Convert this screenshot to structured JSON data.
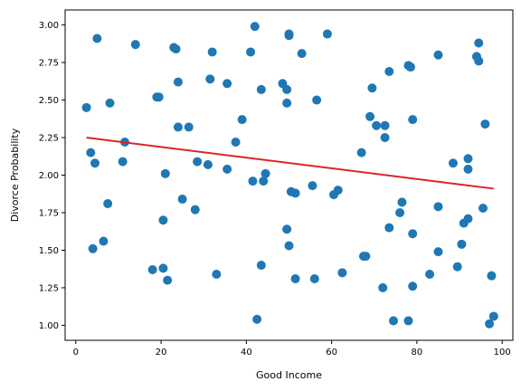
{
  "chart_data": {
    "type": "scatter",
    "xlabel": "Good Income",
    "ylabel": "Divorce Probability",
    "xlim": [
      -2.5,
      102.5
    ],
    "ylim": [
      0.9,
      3.1
    ],
    "xticks": [
      0,
      20,
      40,
      60,
      80,
      100
    ],
    "xtick_labels": [
      "0",
      "20",
      "40",
      "60",
      "80",
      "100"
    ],
    "yticks": [
      1.0,
      1.25,
      1.5,
      1.75,
      2.0,
      2.25,
      2.5,
      2.75,
      3.0
    ],
    "ytick_labels": [
      "1.00",
      "1.25",
      "1.50",
      "1.75",
      "2.00",
      "2.25",
      "2.50",
      "2.75",
      "3.00"
    ],
    "grid": false,
    "point_color": "#1f77b4",
    "line_color": "#d62728",
    "points": [
      {
        "x": 2.5,
        "y": 2.45
      },
      {
        "x": 3.5,
        "y": 2.15
      },
      {
        "x": 4.0,
        "y": 1.51
      },
      {
        "x": 4.5,
        "y": 2.08
      },
      {
        "x": 5.0,
        "y": 2.91
      },
      {
        "x": 6.5,
        "y": 1.56
      },
      {
        "x": 7.5,
        "y": 1.81
      },
      {
        "x": 8.0,
        "y": 2.48
      },
      {
        "x": 11.0,
        "y": 2.09
      },
      {
        "x": 11.5,
        "y": 2.22
      },
      {
        "x": 14.0,
        "y": 2.87
      },
      {
        "x": 18.0,
        "y": 1.37
      },
      {
        "x": 19.0,
        "y": 2.52
      },
      {
        "x": 19.5,
        "y": 2.52
      },
      {
        "x": 20.5,
        "y": 1.38
      },
      {
        "x": 20.5,
        "y": 1.7
      },
      {
        "x": 21.0,
        "y": 2.01
      },
      {
        "x": 21.5,
        "y": 1.3
      },
      {
        "x": 23.0,
        "y": 2.85
      },
      {
        "x": 23.5,
        "y": 2.84
      },
      {
        "x": 24.0,
        "y": 2.32
      },
      {
        "x": 24.0,
        "y": 2.62
      },
      {
        "x": 25.0,
        "y": 1.84
      },
      {
        "x": 26.5,
        "y": 2.32
      },
      {
        "x": 28.0,
        "y": 1.77
      },
      {
        "x": 28.5,
        "y": 2.09
      },
      {
        "x": 31.0,
        "y": 2.07
      },
      {
        "x": 31.5,
        "y": 2.64
      },
      {
        "x": 32.0,
        "y": 2.82
      },
      {
        "x": 33.0,
        "y": 1.34
      },
      {
        "x": 35.5,
        "y": 2.61
      },
      {
        "x": 35.5,
        "y": 2.04
      },
      {
        "x": 37.5,
        "y": 2.22
      },
      {
        "x": 39.0,
        "y": 2.37
      },
      {
        "x": 41.0,
        "y": 2.82
      },
      {
        "x": 41.5,
        "y": 1.96
      },
      {
        "x": 42.0,
        "y": 2.99
      },
      {
        "x": 42.5,
        "y": 1.04
      },
      {
        "x": 43.5,
        "y": 2.57
      },
      {
        "x": 43.5,
        "y": 1.4
      },
      {
        "x": 44.0,
        "y": 1.96
      },
      {
        "x": 44.5,
        "y": 2.01
      },
      {
        "x": 48.5,
        "y": 2.61
      },
      {
        "x": 49.5,
        "y": 1.64
      },
      {
        "x": 49.5,
        "y": 2.48
      },
      {
        "x": 49.5,
        "y": 2.57
      },
      {
        "x": 50.0,
        "y": 2.94
      },
      {
        "x": 50.0,
        "y": 2.93
      },
      {
        "x": 50.0,
        "y": 1.53
      },
      {
        "x": 50.5,
        "y": 1.89
      },
      {
        "x": 51.5,
        "y": 1.88
      },
      {
        "x": 51.5,
        "y": 1.31
      },
      {
        "x": 53.0,
        "y": 2.81
      },
      {
        "x": 55.5,
        "y": 1.93
      },
      {
        "x": 56.0,
        "y": 1.31
      },
      {
        "x": 56.5,
        "y": 2.5
      },
      {
        "x": 59.0,
        "y": 2.94
      },
      {
        "x": 60.5,
        "y": 1.87
      },
      {
        "x": 61.5,
        "y": 1.9
      },
      {
        "x": 62.5,
        "y": 1.35
      },
      {
        "x": 67.0,
        "y": 2.15
      },
      {
        "x": 67.5,
        "y": 1.46
      },
      {
        "x": 68.0,
        "y": 1.46
      },
      {
        "x": 69.0,
        "y": 2.39
      },
      {
        "x": 69.5,
        "y": 2.58
      },
      {
        "x": 70.5,
        "y": 2.33
      },
      {
        "x": 72.0,
        "y": 1.25
      },
      {
        "x": 72.5,
        "y": 2.25
      },
      {
        "x": 72.5,
        "y": 2.33
      },
      {
        "x": 73.5,
        "y": 2.69
      },
      {
        "x": 73.5,
        "y": 1.65
      },
      {
        "x": 74.5,
        "y": 1.03
      },
      {
        "x": 76.0,
        "y": 1.75
      },
      {
        "x": 76.5,
        "y": 1.82
      },
      {
        "x": 78.0,
        "y": 2.73
      },
      {
        "x": 78.0,
        "y": 1.03
      },
      {
        "x": 78.5,
        "y": 2.72
      },
      {
        "x": 78.5,
        "y": 2.72
      },
      {
        "x": 79.0,
        "y": 2.37
      },
      {
        "x": 79.0,
        "y": 1.26
      },
      {
        "x": 79.0,
        "y": 1.61
      },
      {
        "x": 83.0,
        "y": 1.34
      },
      {
        "x": 85.0,
        "y": 2.8
      },
      {
        "x": 85.0,
        "y": 1.79
      },
      {
        "x": 85.0,
        "y": 1.49
      },
      {
        "x": 88.5,
        "y": 2.08
      },
      {
        "x": 89.5,
        "y": 1.39
      },
      {
        "x": 90.5,
        "y": 1.54
      },
      {
        "x": 91.0,
        "y": 1.68
      },
      {
        "x": 92.0,
        "y": 2.11
      },
      {
        "x": 92.0,
        "y": 2.04
      },
      {
        "x": 92.0,
        "y": 1.71
      },
      {
        "x": 94.0,
        "y": 2.79
      },
      {
        "x": 94.5,
        "y": 2.88
      },
      {
        "x": 94.5,
        "y": 2.76
      },
      {
        "x": 95.5,
        "y": 1.78
      },
      {
        "x": 96.0,
        "y": 2.34
      },
      {
        "x": 97.0,
        "y": 1.01
      },
      {
        "x": 97.5,
        "y": 1.33
      },
      {
        "x": 98.0,
        "y": 1.06
      }
    ],
    "trend_line": {
      "x": [
        2.5,
        98.0
      ],
      "y": [
        2.25,
        1.91
      ]
    }
  }
}
